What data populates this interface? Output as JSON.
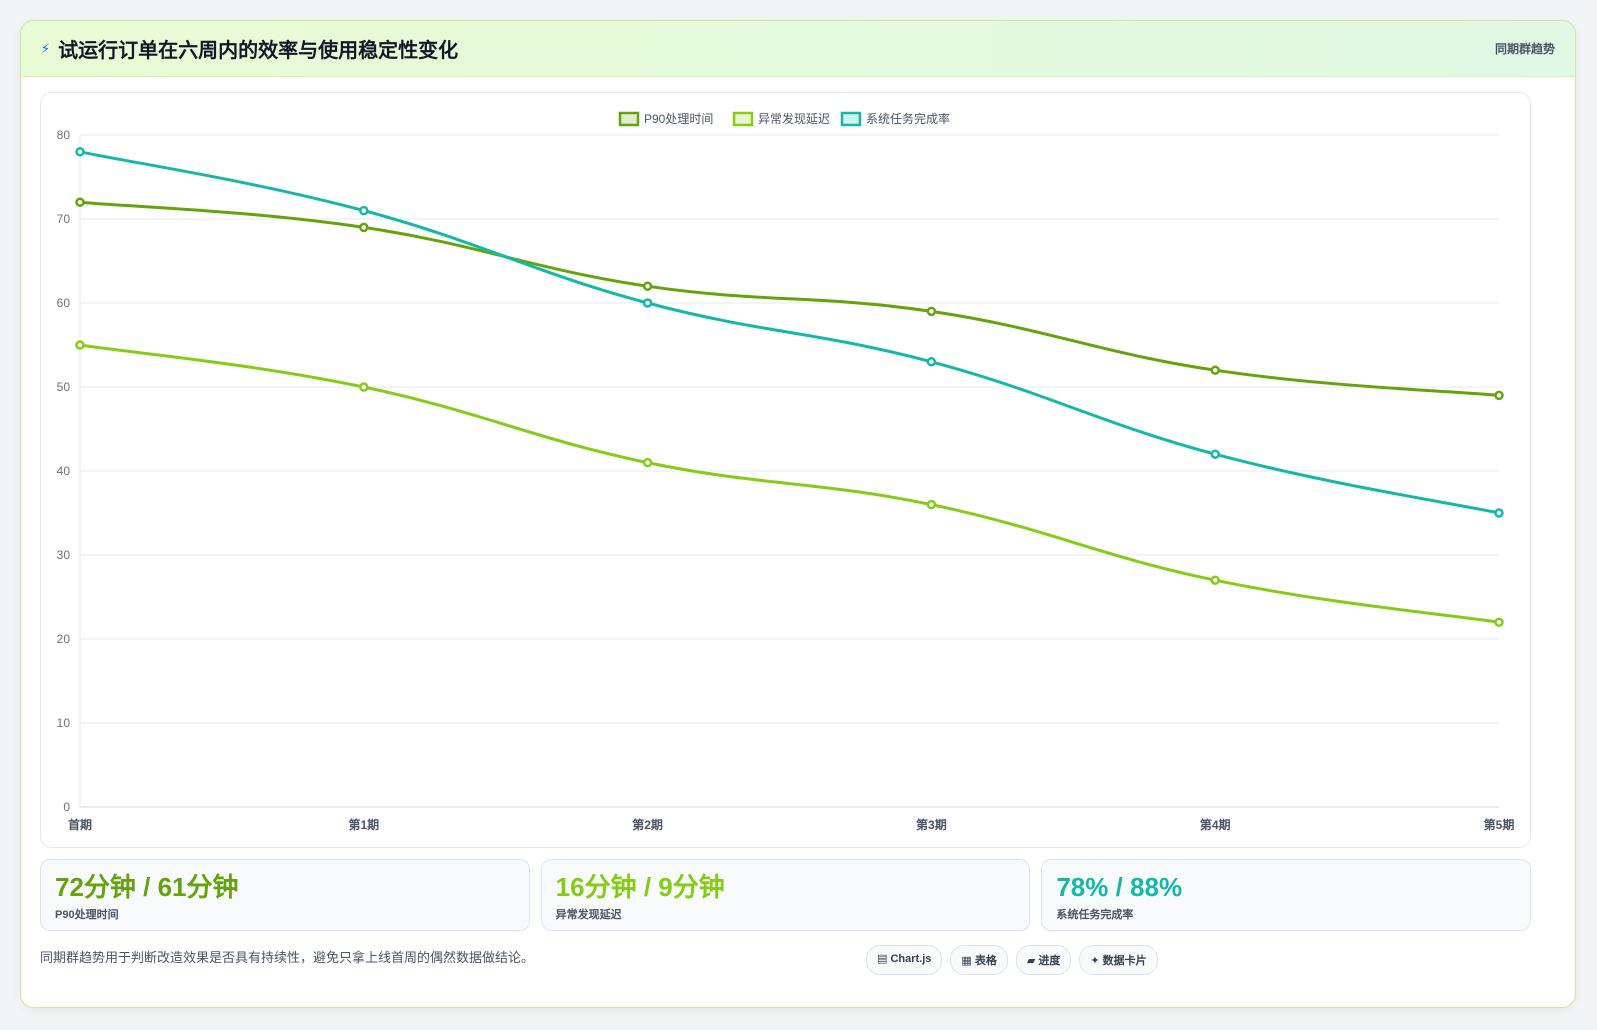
{
  "header": {
    "icon": "bolt-icon",
    "title": "试运行订单在六周内的效率与使用稳定性变化",
    "tag": "同期群趋势"
  },
  "chart_data": {
    "type": "line",
    "categories": [
      "首期",
      "第1期",
      "第2期",
      "第3期",
      "第4期",
      "第5期"
    ],
    "series": [
      {
        "name": "P90处理时间",
        "color": "#65a30d",
        "values": [
          72,
          69,
          62,
          59,
          52,
          49
        ]
      },
      {
        "name": "异常发现延迟",
        "color": "#84cc16",
        "values": [
          55,
          50,
          41,
          36,
          27,
          22
        ]
      },
      {
        "name": "系统任务完成率",
        "color": "#14b8a6",
        "values": [
          78,
          71,
          60,
          53,
          42,
          35
        ]
      }
    ],
    "yticks": [
      "0",
      "10",
      "20",
      "30",
      "40",
      "50",
      "60",
      "70",
      "80"
    ],
    "ylim": [
      0,
      80
    ],
    "grid": true,
    "legend": "top-center"
  },
  "stats": [
    {
      "value": "72分钟 / 61分钟",
      "label": "P90处理时间",
      "color": "#65a30d"
    },
    {
      "value": "16分钟 / 9分钟",
      "label": "异常发现延迟",
      "color": "#84cc16"
    },
    {
      "value": "78% / 88%",
      "label": "系统任务完成率",
      "color": "#14b8a6"
    }
  ],
  "footer": {
    "note": "同期群趋势用于判断改造效果是否具有持续性，避免只拿上线首周的偶然数据做结论。",
    "badges": [
      "▤ Chart.js",
      "▦ 表格",
      "▰ 进度",
      "✦ 数据卡片"
    ]
  }
}
